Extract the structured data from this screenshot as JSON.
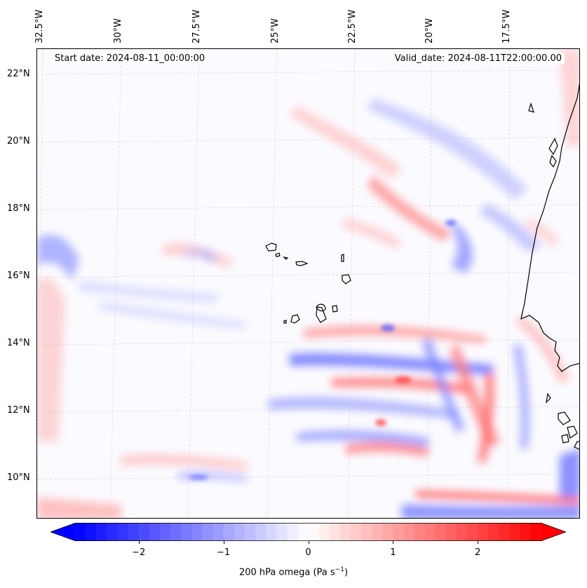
{
  "header": {
    "start_date": "Start date: 2024-08-11_00:00:00",
    "valid_date": "Valid_date: 2024-08-11T22:00:00.00"
  },
  "longitude_labels": [
    "32.5°W",
    "30°W",
    "27.5°W",
    "25°W",
    "22.5°W",
    "20°W",
    "17.5°W"
  ],
  "latitude_labels": [
    "22°N",
    "20°N",
    "18°N",
    "16°N",
    "14°N",
    "12°N",
    "10°N"
  ],
  "colorbar": {
    "ticks": [
      "−2",
      "−1",
      "0",
      "1",
      "2"
    ],
    "tick_values": [
      -2,
      -1,
      0,
      1,
      2
    ],
    "range": [
      -2.75,
      2.75
    ],
    "label": "200 hPa omega (Pa s",
    "label_sup": "−1",
    "label_close": ")",
    "negative_color": "#0000ff",
    "positive_color": "#ff0000"
  },
  "map": {
    "variable": "200 hPa omega",
    "features": [
      "Cape Verde islands",
      "West African coastline"
    ]
  }
}
